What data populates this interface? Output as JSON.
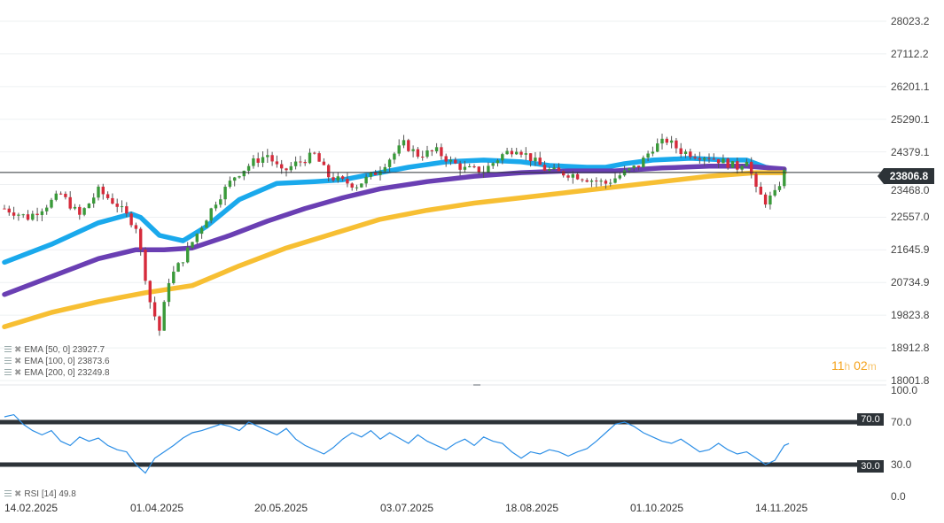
{
  "chart_data": [
    {
      "type": "candlestick",
      "y_ticks": [
        "28023.2",
        "27112.2",
        "26201.1",
        "25290.1",
        "24379.1",
        "23468.0",
        "22557.0",
        "21645.9",
        "20734.9",
        "19823.8",
        "18912.8",
        "18001.8"
      ],
      "ylim": [
        18001.8,
        28023.2
      ],
      "x_ticks": [
        "14.02.2025",
        "01.04.2025",
        "20.05.2025",
        "03.07.2025",
        "18.08.2025",
        "01.10.2025",
        "14.11.2025"
      ],
      "last_price": "23806.8",
      "close_path": [
        [
          0,
          22800
        ],
        [
          5,
          22550
        ],
        [
          9,
          22900
        ],
        [
          12,
          23200
        ],
        [
          16,
          22600
        ],
        [
          20,
          23300
        ],
        [
          24,
          22900
        ],
        [
          28,
          22300
        ],
        [
          31,
          20200
        ],
        [
          33,
          19400
        ],
        [
          35,
          20800
        ],
        [
          38,
          21400
        ],
        [
          41,
          22100
        ],
        [
          45,
          23000
        ],
        [
          49,
          23700
        ],
        [
          53,
          24100
        ],
        [
          56,
          24300
        ],
        [
          59,
          23800
        ],
        [
          62,
          24050
        ],
        [
          66,
          24300
        ],
        [
          69,
          23700
        ],
        [
          72,
          23550
        ],
        [
          75,
          23450
        ],
        [
          79,
          23800
        ],
        [
          82,
          24200
        ],
        [
          85,
          24600
        ],
        [
          88,
          24300
        ],
        [
          92,
          24400
        ],
        [
          95,
          24100
        ],
        [
          98,
          23900
        ],
        [
          102,
          23850
        ],
        [
          106,
          24300
        ],
        [
          109,
          24500
        ],
        [
          112,
          24200
        ],
        [
          115,
          23900
        ],
        [
          118,
          23800
        ],
        [
          121,
          23750
        ],
        [
          125,
          23600
        ],
        [
          128,
          23500
        ],
        [
          132,
          23800
        ],
        [
          135,
          24000
        ],
        [
          138,
          24500
        ],
        [
          141,
          24700
        ],
        [
          144,
          24400
        ],
        [
          147,
          24300
        ],
        [
          150,
          24250
        ],
        [
          153,
          24100
        ],
        [
          156,
          23950
        ],
        [
          158,
          24200
        ],
        [
          160,
          23300
        ],
        [
          162,
          23000
        ],
        [
          164,
          23200
        ],
        [
          166,
          23806.8
        ]
      ],
      "indicators": [
        {
          "name": "EMA",
          "params": "[50, 0]",
          "value": "23927.7",
          "color": "#1aa9ec",
          "points": [
            [
              0,
              21300
            ],
            [
              10,
              21800
            ],
            [
              20,
              22400
            ],
            [
              27,
              22650
            ],
            [
              29,
              22550
            ],
            [
              33,
              22050
            ],
            [
              38,
              21900
            ],
            [
              43,
              22300
            ],
            [
              50,
              23050
            ],
            [
              58,
              23500
            ],
            [
              66,
              23550
            ],
            [
              72,
              23600
            ],
            [
              78,
              23750
            ],
            [
              86,
              23950
            ],
            [
              94,
              24100
            ],
            [
              102,
              24150
            ],
            [
              110,
              24100
            ],
            [
              116,
              24000
            ],
            [
              124,
              23950
            ],
            [
              128,
              23950
            ],
            [
              132,
              24050
            ],
            [
              138,
              24150
            ],
            [
              146,
              24200
            ],
            [
              154,
              24150
            ],
            [
              158,
              24150
            ],
            [
              162,
              23950
            ],
            [
              166,
              23850
            ]
          ]
        },
        {
          "name": "EMA",
          "params": "[100, 0]",
          "value": "23873.6",
          "color": "#6a3fb3",
          "points": [
            [
              0,
              20400
            ],
            [
              10,
              20900
            ],
            [
              20,
              21400
            ],
            [
              28,
              21650
            ],
            [
              34,
              21650
            ],
            [
              40,
              21700
            ],
            [
              48,
              22050
            ],
            [
              56,
              22450
            ],
            [
              64,
              22800
            ],
            [
              72,
              23100
            ],
            [
              80,
              23350
            ],
            [
              90,
              23550
            ],
            [
              100,
              23700
            ],
            [
              110,
              23800
            ],
            [
              120,
              23850
            ],
            [
              130,
              23850
            ],
            [
              140,
              23930
            ],
            [
              150,
              23980
            ],
            [
              158,
              23980
            ],
            [
              166,
              23900
            ]
          ]
        },
        {
          "name": "EMA",
          "params": "[200, 0]",
          "value": "23249.8",
          "color": "#f7bf33",
          "points": [
            [
              0,
              19500
            ],
            [
              10,
              19900
            ],
            [
              20,
              20200
            ],
            [
              30,
              20450
            ],
            [
              40,
              20650
            ],
            [
              50,
              21200
            ],
            [
              60,
              21700
            ],
            [
              70,
              22100
            ],
            [
              80,
              22500
            ],
            [
              90,
              22750
            ],
            [
              100,
              22950
            ],
            [
              110,
              23100
            ],
            [
              120,
              23250
            ],
            [
              130,
              23400
            ],
            [
              140,
              23550
            ],
            [
              150,
              23700
            ],
            [
              160,
              23800
            ],
            [
              166,
              23800
            ]
          ]
        }
      ]
    },
    {
      "type": "line",
      "y_ticks": [
        "100.0",
        "70.0",
        "30.0",
        "0.0"
      ],
      "ylim": [
        0,
        100
      ],
      "levels": [
        "70.0",
        "30.0"
      ],
      "indicator": {
        "name": "RSI",
        "params": "[14]",
        "value": "49.8",
        "color": "#2b8ee6"
      },
      "series_path": [
        [
          0,
          75
        ],
        [
          2,
          77
        ],
        [
          4,
          68
        ],
        [
          6,
          62
        ],
        [
          8,
          58
        ],
        [
          10,
          62
        ],
        [
          12,
          52
        ],
        [
          14,
          48
        ],
        [
          16,
          56
        ],
        [
          18,
          52
        ],
        [
          20,
          55
        ],
        [
          22,
          48
        ],
        [
          24,
          44
        ],
        [
          26,
          42
        ],
        [
          28,
          30
        ],
        [
          30,
          22
        ],
        [
          32,
          36
        ],
        [
          34,
          42
        ],
        [
          36,
          48
        ],
        [
          38,
          55
        ],
        [
          40,
          60
        ],
        [
          42,
          62
        ],
        [
          44,
          65
        ],
        [
          46,
          68
        ],
        [
          48,
          66
        ],
        [
          50,
          62
        ],
        [
          52,
          70
        ],
        [
          54,
          66
        ],
        [
          56,
          62
        ],
        [
          58,
          58
        ],
        [
          60,
          64
        ],
        [
          62,
          54
        ],
        [
          64,
          48
        ],
        [
          66,
          44
        ],
        [
          68,
          40
        ],
        [
          70,
          46
        ],
        [
          72,
          54
        ],
        [
          74,
          60
        ],
        [
          76,
          56
        ],
        [
          78,
          62
        ],
        [
          80,
          54
        ],
        [
          82,
          60
        ],
        [
          84,
          55
        ],
        [
          86,
          50
        ],
        [
          88,
          58
        ],
        [
          90,
          52
        ],
        [
          92,
          48
        ],
        [
          94,
          44
        ],
        [
          96,
          50
        ],
        [
          98,
          54
        ],
        [
          100,
          48
        ],
        [
          102,
          56
        ],
        [
          104,
          52
        ],
        [
          106,
          50
        ],
        [
          108,
          42
        ],
        [
          110,
          36
        ],
        [
          112,
          42
        ],
        [
          114,
          40
        ],
        [
          116,
          44
        ],
        [
          118,
          42
        ],
        [
          120,
          38
        ],
        [
          122,
          42
        ],
        [
          124,
          45
        ],
        [
          126,
          52
        ],
        [
          128,
          60
        ],
        [
          130,
          68
        ],
        [
          132,
          70
        ],
        [
          134,
          66
        ],
        [
          136,
          60
        ],
        [
          138,
          56
        ],
        [
          140,
          52
        ],
        [
          142,
          50
        ],
        [
          144,
          54
        ],
        [
          146,
          48
        ],
        [
          148,
          42
        ],
        [
          150,
          44
        ],
        [
          152,
          50
        ],
        [
          154,
          44
        ],
        [
          156,
          40
        ],
        [
          158,
          42
        ],
        [
          160,
          36
        ],
        [
          162,
          30
        ],
        [
          164,
          34
        ],
        [
          166,
          48
        ],
        [
          167,
          49.8
        ]
      ]
    }
  ],
  "countdown": {
    "hours": "11",
    "hours_unit": "h",
    "minutes": "02",
    "minutes_unit": "m"
  }
}
